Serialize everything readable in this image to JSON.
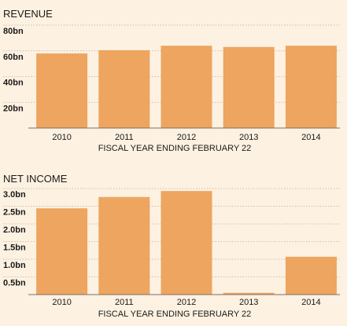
{
  "colors": {
    "background": "#fdf1e1",
    "bar": "#eda55f",
    "gridline": "#b9b0a4",
    "axis": "#7a7066",
    "text": "#1a1a1a"
  },
  "chart_data": [
    {
      "type": "bar",
      "title": "REVENUE",
      "xlabel": "FISCAL YEAR ENDING FEBRUARY 22",
      "ylabel": "",
      "categories": [
        "2010",
        "2011",
        "2012",
        "2013",
        "2014"
      ],
      "values": [
        58,
        60.5,
        64,
        63,
        64
      ],
      "ylim": [
        0,
        80
      ],
      "yticks": [
        20,
        40,
        60,
        80
      ],
      "ytick_labels": [
        "20bn",
        "40bn",
        "60bn",
        "80bn"
      ],
      "grid": true,
      "legend": "none"
    },
    {
      "type": "bar",
      "title": "NET INCOME",
      "xlabel": "FISCAL YEAR ENDING FEBRUARY 22",
      "ylabel": "",
      "categories": [
        "2010",
        "2011",
        "2012",
        "2013",
        "2014"
      ],
      "values": [
        2.44,
        2.76,
        2.93,
        0.05,
        1.07
      ],
      "ylim": [
        0,
        3.0
      ],
      "yticks": [
        0.5,
        1.0,
        1.5,
        2.0,
        2.5,
        3.0
      ],
      "ytick_labels": [
        "0.5bn",
        "1.0bn",
        "1.5bn",
        "2.0bn",
        "2.5bn",
        "3.0bn"
      ],
      "grid": true,
      "legend": "none"
    }
  ]
}
